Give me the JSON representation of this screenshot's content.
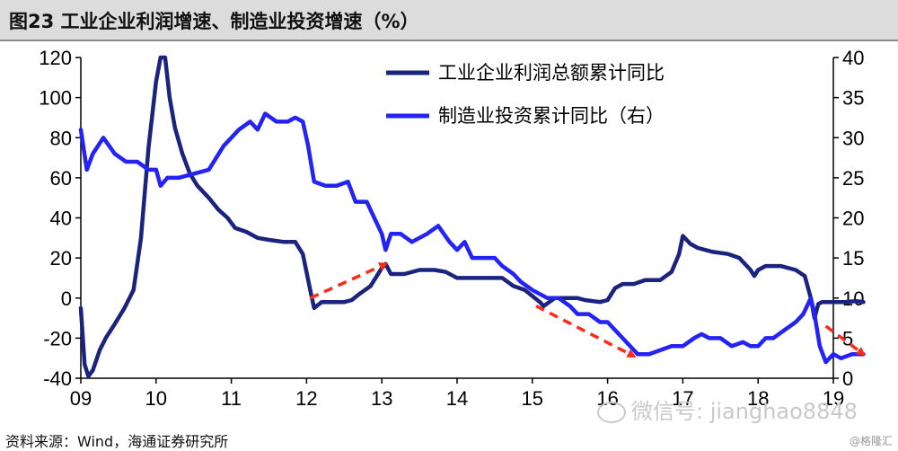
{
  "title": "图23 工业企业利润增速、制造业投资增速（%）",
  "source": "资料来源：Wind，海通证券研究所",
  "watermark": {
    "icon": "wechat-icon",
    "text": "微信号: jianghao8848"
  },
  "corner_mark": "@格隆汇",
  "colors": {
    "profit": "#1a237e",
    "investment": "#2323f5",
    "arrow": "#ff2a1a",
    "axis": "#000000"
  },
  "chart_data": {
    "type": "line",
    "x_tick_labels": [
      "09",
      "10",
      "11",
      "12",
      "13",
      "14",
      "15",
      "16",
      "17",
      "18",
      "19"
    ],
    "x_range": [
      2009.0,
      2019.0
    ],
    "y_left_ticks": [
      "-40",
      "-20",
      "0",
      "20",
      "40",
      "60",
      "80",
      "100",
      "120"
    ],
    "y_left_range": [
      -40,
      120
    ],
    "y_right_ticks": [
      "0",
      "5",
      "10",
      "15",
      "20",
      "25",
      "30",
      "35",
      "40"
    ],
    "y_right_range": [
      0,
      40
    ],
    "grid": false,
    "legend_position": "top-right",
    "series": [
      {
        "name": "工业企业利润总额累计同比",
        "axis": "left",
        "color": "#1a237e",
        "points": [
          [
            2009.0,
            -5
          ],
          [
            2009.05,
            -33
          ],
          [
            2009.1,
            -39
          ],
          [
            2009.16,
            -36
          ],
          [
            2009.25,
            -26
          ],
          [
            2009.33,
            -20
          ],
          [
            2009.45,
            -13
          ],
          [
            2009.58,
            -5
          ],
          [
            2009.7,
            4
          ],
          [
            2009.8,
            30
          ],
          [
            2009.9,
            75
          ],
          [
            2010.0,
            108
          ],
          [
            2010.06,
            120
          ],
          [
            2010.12,
            120
          ],
          [
            2010.18,
            100
          ],
          [
            2010.25,
            85
          ],
          [
            2010.35,
            72
          ],
          [
            2010.45,
            62
          ],
          [
            2010.55,
            56
          ],
          [
            2010.7,
            50
          ],
          [
            2010.83,
            44
          ],
          [
            2010.95,
            40
          ],
          [
            2011.05,
            35
          ],
          [
            2011.2,
            33
          ],
          [
            2011.35,
            30
          ],
          [
            2011.5,
            29
          ],
          [
            2011.7,
            28
          ],
          [
            2011.85,
            28
          ],
          [
            2011.95,
            22
          ],
          [
            2012.06,
            2
          ],
          [
            2012.1,
            -5
          ],
          [
            2012.2,
            -2
          ],
          [
            2012.35,
            -2
          ],
          [
            2012.5,
            -2
          ],
          [
            2012.6,
            -1
          ],
          [
            2012.7,
            2
          ],
          [
            2012.85,
            6
          ],
          [
            2013.0,
            15
          ],
          [
            2013.05,
            17
          ],
          [
            2013.12,
            12
          ],
          [
            2013.3,
            12
          ],
          [
            2013.5,
            14
          ],
          [
            2013.7,
            14
          ],
          [
            2013.85,
            13
          ],
          [
            2014.0,
            10
          ],
          [
            2014.2,
            10
          ],
          [
            2014.35,
            10
          ],
          [
            2014.5,
            10
          ],
          [
            2014.6,
            10
          ],
          [
            2014.75,
            6
          ],
          [
            2014.9,
            4
          ],
          [
            2015.1,
            -2
          ],
          [
            2015.15,
            -4
          ],
          [
            2015.3,
            0
          ],
          [
            2015.5,
            0
          ],
          [
            2015.6,
            0
          ],
          [
            2015.7,
            -1
          ],
          [
            2015.9,
            -2
          ],
          [
            2016.0,
            -1
          ],
          [
            2016.1,
            5
          ],
          [
            2016.2,
            7
          ],
          [
            2016.35,
            7
          ],
          [
            2016.5,
            9
          ],
          [
            2016.7,
            9
          ],
          [
            2016.85,
            13
          ],
          [
            2016.95,
            22
          ],
          [
            2017.0,
            31
          ],
          [
            2017.1,
            27
          ],
          [
            2017.2,
            25
          ],
          [
            2017.4,
            23
          ],
          [
            2017.6,
            22
          ],
          [
            2017.75,
            20
          ],
          [
            2017.9,
            14
          ],
          [
            2017.95,
            11
          ],
          [
            2018.0,
            14
          ],
          [
            2018.1,
            16
          ],
          [
            2018.3,
            16
          ],
          [
            2018.5,
            14
          ],
          [
            2018.62,
            11
          ],
          [
            2018.7,
            0
          ],
          [
            2018.75,
            -10
          ],
          [
            2018.8,
            -3
          ],
          [
            2018.85,
            -2
          ],
          [
            2019.0,
            -2
          ],
          [
            2019.15,
            -2
          ],
          [
            2019.3,
            -1.5
          ],
          [
            2019.4,
            -2
          ]
        ]
      },
      {
        "name": "制造业投资累计同比（右）",
        "axis": "right",
        "color": "#2323f5",
        "points": [
          [
            2009.0,
            31
          ],
          [
            2009.08,
            26
          ],
          [
            2009.16,
            28
          ],
          [
            2009.3,
            30
          ],
          [
            2009.45,
            28
          ],
          [
            2009.6,
            27
          ],
          [
            2009.75,
            27
          ],
          [
            2009.9,
            26
          ],
          [
            2010.0,
            26
          ],
          [
            2010.06,
            24
          ],
          [
            2010.15,
            25
          ],
          [
            2010.3,
            25
          ],
          [
            2010.5,
            25.5
          ],
          [
            2010.7,
            26
          ],
          [
            2010.9,
            29
          ],
          [
            2011.0,
            30
          ],
          [
            2011.1,
            31
          ],
          [
            2011.25,
            32
          ],
          [
            2011.35,
            31
          ],
          [
            2011.45,
            33
          ],
          [
            2011.6,
            32
          ],
          [
            2011.75,
            32
          ],
          [
            2011.85,
            32.5
          ],
          [
            2011.95,
            32
          ],
          [
            2012.02,
            29
          ],
          [
            2012.1,
            24.5
          ],
          [
            2012.25,
            24
          ],
          [
            2012.4,
            24
          ],
          [
            2012.55,
            24.5
          ],
          [
            2012.65,
            22
          ],
          [
            2012.8,
            22
          ],
          [
            2012.9,
            20
          ],
          [
            2013.0,
            18
          ],
          [
            2013.05,
            16
          ],
          [
            2013.12,
            18
          ],
          [
            2013.25,
            18
          ],
          [
            2013.4,
            17
          ],
          [
            2013.6,
            18
          ],
          [
            2013.75,
            19
          ],
          [
            2013.9,
            17
          ],
          [
            2014.0,
            16
          ],
          [
            2014.1,
            17
          ],
          [
            2014.2,
            15
          ],
          [
            2014.35,
            15
          ],
          [
            2014.5,
            15
          ],
          [
            2014.6,
            14
          ],
          [
            2014.75,
            13
          ],
          [
            2014.85,
            12
          ],
          [
            2015.0,
            11
          ],
          [
            2015.1,
            10.5
          ],
          [
            2015.2,
            10
          ],
          [
            2015.35,
            10
          ],
          [
            2015.5,
            9
          ],
          [
            2015.6,
            8
          ],
          [
            2015.75,
            8
          ],
          [
            2015.9,
            7
          ],
          [
            2016.0,
            7
          ],
          [
            2016.1,
            6
          ],
          [
            2016.2,
            5
          ],
          [
            2016.4,
            3
          ],
          [
            2016.55,
            3
          ],
          [
            2016.7,
            3.5
          ],
          [
            2016.85,
            4
          ],
          [
            2017.0,
            4
          ],
          [
            2017.15,
            5
          ],
          [
            2017.25,
            5.5
          ],
          [
            2017.35,
            5
          ],
          [
            2017.5,
            5
          ],
          [
            2017.65,
            4
          ],
          [
            2017.8,
            4.5
          ],
          [
            2017.9,
            4
          ],
          [
            2018.0,
            4
          ],
          [
            2018.1,
            5
          ],
          [
            2018.2,
            5
          ],
          [
            2018.35,
            6
          ],
          [
            2018.5,
            7
          ],
          [
            2018.6,
            8
          ],
          [
            2018.7,
            10
          ],
          [
            2018.75,
            8
          ],
          [
            2018.82,
            4
          ],
          [
            2018.9,
            2
          ],
          [
            2019.0,
            3
          ],
          [
            2019.1,
            2.5
          ],
          [
            2019.25,
            3
          ],
          [
            2019.4,
            3
          ]
        ]
      }
    ],
    "annotations": [
      {
        "type": "arrow",
        "style": "dashed",
        "from": [
          2012.05,
          0
        ],
        "to": [
          2013.05,
          17
        ]
      },
      {
        "type": "arrow",
        "style": "dashed",
        "from": [
          2015.05,
          -4
        ],
        "to": [
          2016.35,
          -29
        ]
      },
      {
        "type": "arrow",
        "style": "dashed",
        "from": [
          2018.9,
          -14
        ],
        "to": [
          2019.4,
          -28
        ]
      }
    ]
  }
}
